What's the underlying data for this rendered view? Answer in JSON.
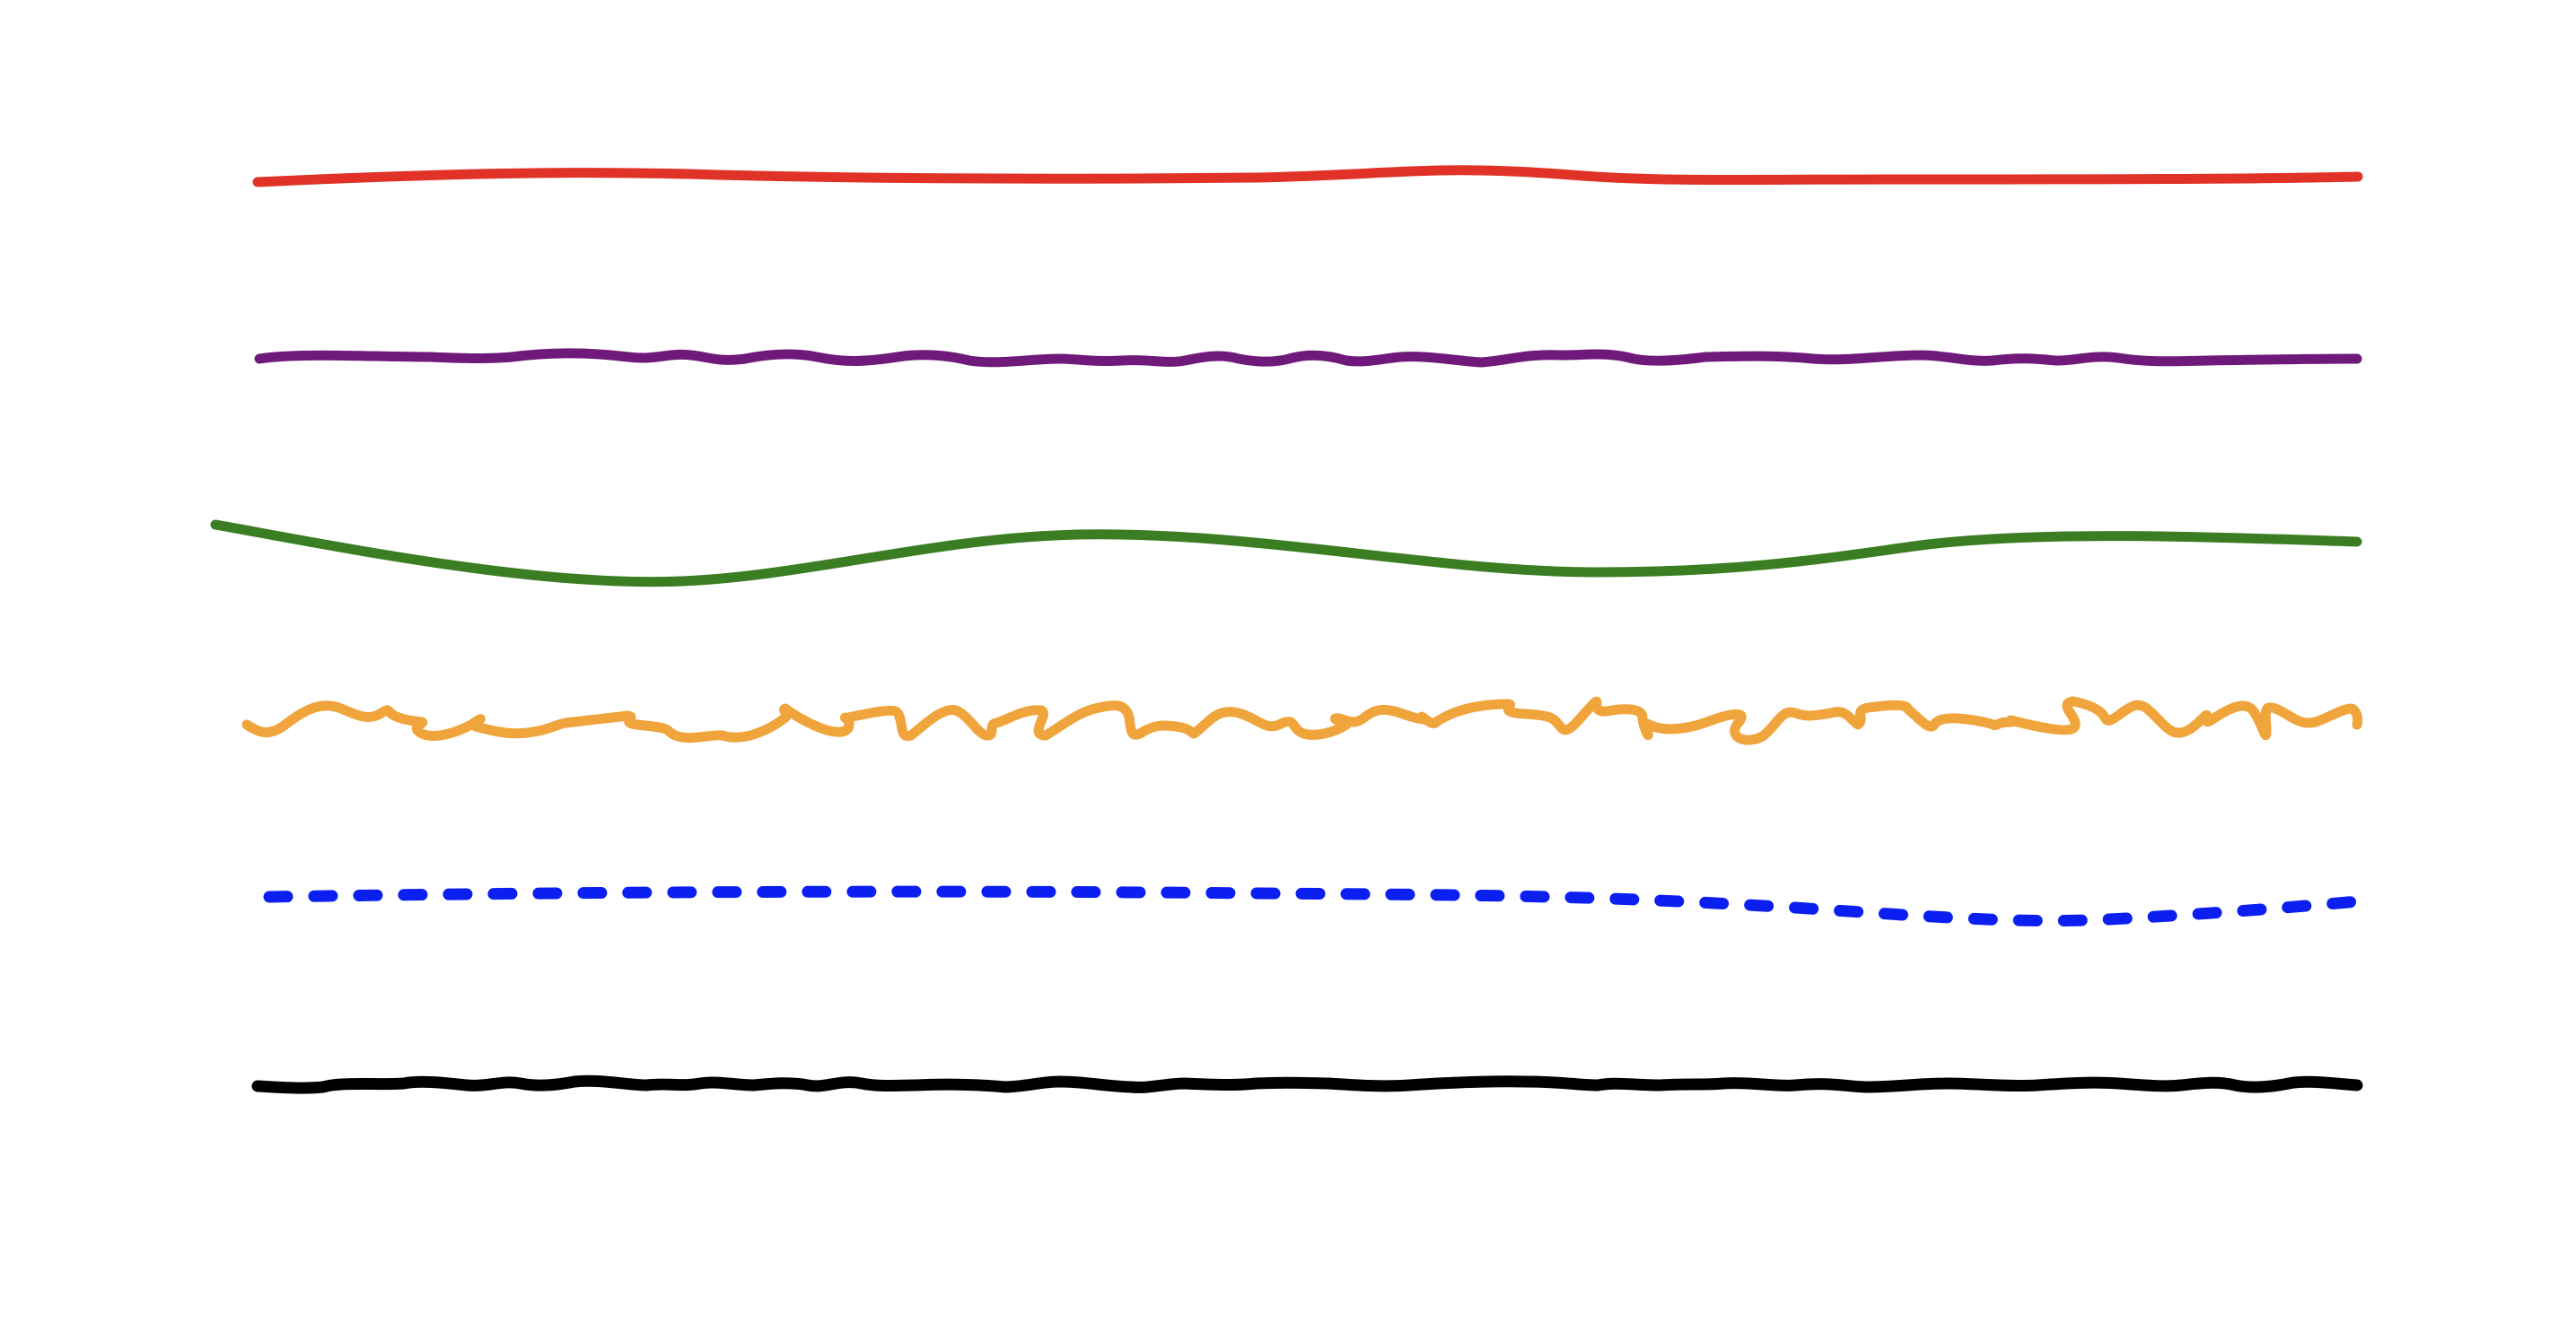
{
  "canvas": {
    "background": "#ffffff"
  },
  "strokes": [
    {
      "id": "red-smooth-stroke",
      "style": "smooth",
      "color": "#e03226"
    },
    {
      "id": "purple-wavy-stroke",
      "style": "wavy",
      "color": "#6f1a7a"
    },
    {
      "id": "green-curve-stroke",
      "style": "curve",
      "color": "#3a7d22"
    },
    {
      "id": "orange-scribble-stroke",
      "style": "scribble",
      "color": "#f0a43c"
    },
    {
      "id": "blue-dotted-stroke",
      "style": "dotted",
      "color": "#0a1ff0"
    },
    {
      "id": "black-rough-stroke",
      "style": "rough",
      "color": "#000000"
    }
  ]
}
